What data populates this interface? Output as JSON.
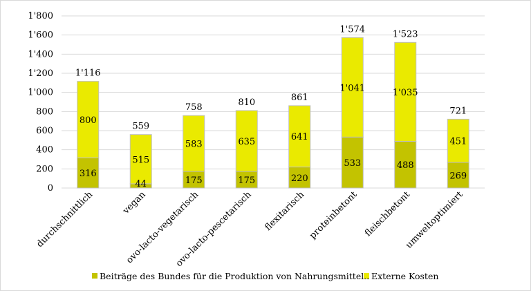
{
  "chart_data": {
    "type": "bar",
    "stacked": true,
    "categories": [
      "durchschnittlich",
      "vegan",
      "ovo-lacto-vegetarisch",
      "ovo-lacto-pescetarisch",
      "flexitarisch",
      "proteinbetont",
      "fleischbetont",
      "umweltoptimiert"
    ],
    "series": [
      {
        "name": "Beiträge des Bundes für die Produktion von Nahrungsmitteln",
        "color": "#c3c300",
        "values": [
          316,
          44,
          175,
          175,
          220,
          533,
          488,
          269
        ],
        "labels": [
          "316",
          "44",
          "175",
          "175",
          "220",
          "533",
          "488",
          "269"
        ]
      },
      {
        "name": "Externe Kosten",
        "color": "#eaea00",
        "values": [
          800,
          515,
          583,
          635,
          641,
          1041,
          1035,
          451
        ],
        "labels": [
          "800",
          "515",
          "583",
          "635",
          "641",
          "1'041",
          "1'035",
          "451"
        ]
      }
    ],
    "totals": [
      1116,
      559,
      758,
      810,
      861,
      1574,
      1523,
      721
    ],
    "total_labels": [
      "1'116",
      "559",
      "758",
      "810",
      "861",
      "1'574",
      "1'523",
      "721"
    ],
    "ylim": [
      0,
      1800
    ],
    "yticks": [
      0,
      200,
      400,
      600,
      800,
      1000,
      1200,
      1400,
      1600,
      1800
    ],
    "ytick_labels": [
      "0",
      "200",
      "400",
      "600",
      "800",
      "1'000",
      "1'200",
      "1'400",
      "1'600",
      "1'800"
    ],
    "grid": true,
    "legend_position": "bottom"
  }
}
